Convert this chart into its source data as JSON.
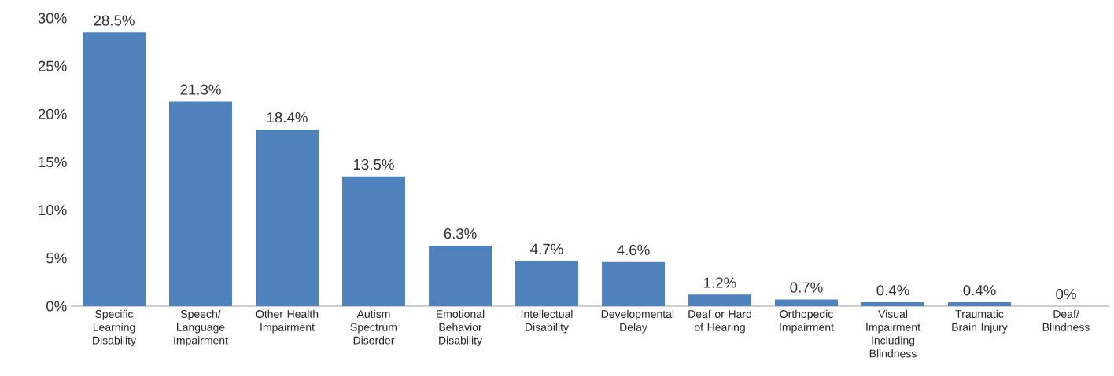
{
  "chart_data": {
    "type": "bar",
    "categories": [
      "Specific Learning Disability",
      "Speech/ Language Impairment",
      "Other Health Impairment",
      "Autism Spectrum Disorder",
      "Emotional Behavior Disability",
      "Intellectual Disability",
      "Developmental Delay",
      "Deaf or Hard of Hearing",
      "Orthopedic Impairment",
      "Visual Impairment Including Blindness",
      "Traumatic Brain Injury",
      "Deaf/ Blindness"
    ],
    "values": [
      28.5,
      21.3,
      18.4,
      13.5,
      6.3,
      4.7,
      4.6,
      1.2,
      0.7,
      0.4,
      0.4,
      0
    ],
    "value_labels": [
      "28.5%",
      "21.3%",
      "18.4%",
      "13.5%",
      "6.3%",
      "4.7%",
      "4.6%",
      "1.2%",
      "0.7%",
      "0.4%",
      "0.4%",
      "0%"
    ],
    "color": "#4f81bd",
    "ylim": [
      0,
      30
    ],
    "yticks": [
      {
        "value": 0,
        "label": "0%"
      },
      {
        "value": 5,
        "label": "5%"
      },
      {
        "value": 10,
        "label": "10%"
      },
      {
        "value": 15,
        "label": "15%"
      },
      {
        "value": 20,
        "label": "20%"
      },
      {
        "value": 25,
        "label": "25%"
      },
      {
        "value": 30,
        "label": "30%"
      }
    ]
  }
}
